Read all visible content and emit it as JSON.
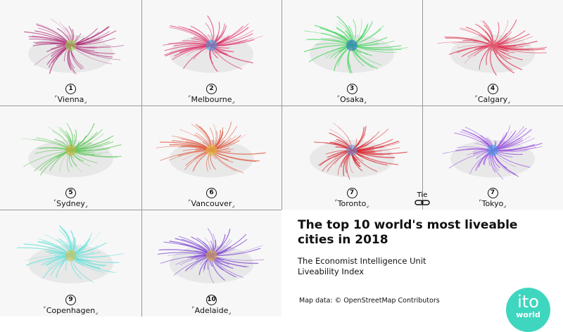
{
  "cities": [
    {
      "rank": "1",
      "name": "Vienna",
      "color": "#b0307a",
      "core": "#9bd94c"
    },
    {
      "rank": "2",
      "name": "Melbourne",
      "color": "#e0306a",
      "core": "#3fa0e0"
    },
    {
      "rank": "3",
      "name": "Osaka",
      "color": "#3ed65a",
      "core": "#2f6fd0"
    },
    {
      "rank": "4",
      "name": "Calgary",
      "color": "#e03050",
      "core": "#e07080"
    },
    {
      "rank": "5",
      "name": "Sydney",
      "color": "#5ec85a",
      "core": "#d0b040"
    },
    {
      "rank": "6",
      "name": "Vancouver",
      "color": "#e05a40",
      "core": "#e0c040"
    },
    {
      "rank": "7",
      "name": "Toronto",
      "color": "#d8202a",
      "core": "#7090d0"
    },
    {
      "rank": "7",
      "name": "Tokyo",
      "color": "#9a50e0",
      "core": "#40a0e0"
    },
    {
      "rank": "9",
      "name": "Copenhagen",
      "color": "#5ee0d8",
      "core": "#e0c050"
    },
    {
      "rank": "10",
      "name": "Adelaide",
      "color": "#7a40d0",
      "core": "#e0b040"
    }
  ],
  "tie_label": "Tie",
  "tie_icon": "chain-link-icon",
  "title": "The top 10 world's most liveable cities in 2018",
  "subtitle_line1": "The Economist Intelligence Unit",
  "subtitle_line2": "Liveability Index",
  "credit": "Map data: © OpenStreetMap Contributors",
  "logo": {
    "top": "ito",
    "bottom": "world",
    "color": "#3fd6bf"
  }
}
